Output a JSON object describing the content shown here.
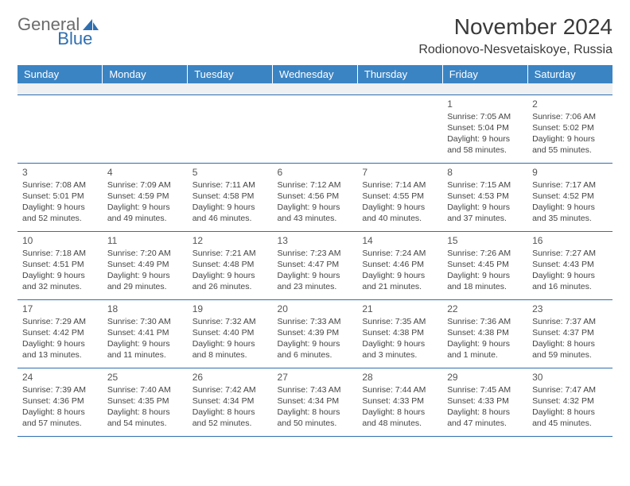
{
  "brand": {
    "part1": "General",
    "part2": "Blue"
  },
  "title": "November 2024",
  "location": "Rodionovo-Nesvetaiskoye, Russia",
  "columns": [
    "Sunday",
    "Monday",
    "Tuesday",
    "Wednesday",
    "Thursday",
    "Friday",
    "Saturday"
  ],
  "colors": {
    "header_bg": "#3b84c4",
    "header_fg": "#ffffff",
    "row_border": "#2f6fb0",
    "blank_row_bg": "#eef0f2",
    "text": "#3a3a3a",
    "logo_gray": "#6b6b6b",
    "logo_blue": "#2f6fb0"
  },
  "weeks": [
    [
      null,
      null,
      null,
      null,
      null,
      {
        "d": "1",
        "sr": "Sunrise: 7:05 AM",
        "ss": "Sunset: 5:04 PM",
        "dl": "Daylight: 9 hours and 58 minutes."
      },
      {
        "d": "2",
        "sr": "Sunrise: 7:06 AM",
        "ss": "Sunset: 5:02 PM",
        "dl": "Daylight: 9 hours and 55 minutes."
      }
    ],
    [
      {
        "d": "3",
        "sr": "Sunrise: 7:08 AM",
        "ss": "Sunset: 5:01 PM",
        "dl": "Daylight: 9 hours and 52 minutes."
      },
      {
        "d": "4",
        "sr": "Sunrise: 7:09 AM",
        "ss": "Sunset: 4:59 PM",
        "dl": "Daylight: 9 hours and 49 minutes."
      },
      {
        "d": "5",
        "sr": "Sunrise: 7:11 AM",
        "ss": "Sunset: 4:58 PM",
        "dl": "Daylight: 9 hours and 46 minutes."
      },
      {
        "d": "6",
        "sr": "Sunrise: 7:12 AM",
        "ss": "Sunset: 4:56 PM",
        "dl": "Daylight: 9 hours and 43 minutes."
      },
      {
        "d": "7",
        "sr": "Sunrise: 7:14 AM",
        "ss": "Sunset: 4:55 PM",
        "dl": "Daylight: 9 hours and 40 minutes."
      },
      {
        "d": "8",
        "sr": "Sunrise: 7:15 AM",
        "ss": "Sunset: 4:53 PM",
        "dl": "Daylight: 9 hours and 37 minutes."
      },
      {
        "d": "9",
        "sr": "Sunrise: 7:17 AM",
        "ss": "Sunset: 4:52 PM",
        "dl": "Daylight: 9 hours and 35 minutes."
      }
    ],
    [
      {
        "d": "10",
        "sr": "Sunrise: 7:18 AM",
        "ss": "Sunset: 4:51 PM",
        "dl": "Daylight: 9 hours and 32 minutes."
      },
      {
        "d": "11",
        "sr": "Sunrise: 7:20 AM",
        "ss": "Sunset: 4:49 PM",
        "dl": "Daylight: 9 hours and 29 minutes."
      },
      {
        "d": "12",
        "sr": "Sunrise: 7:21 AM",
        "ss": "Sunset: 4:48 PM",
        "dl": "Daylight: 9 hours and 26 minutes."
      },
      {
        "d": "13",
        "sr": "Sunrise: 7:23 AM",
        "ss": "Sunset: 4:47 PM",
        "dl": "Daylight: 9 hours and 23 minutes."
      },
      {
        "d": "14",
        "sr": "Sunrise: 7:24 AM",
        "ss": "Sunset: 4:46 PM",
        "dl": "Daylight: 9 hours and 21 minutes."
      },
      {
        "d": "15",
        "sr": "Sunrise: 7:26 AM",
        "ss": "Sunset: 4:45 PM",
        "dl": "Daylight: 9 hours and 18 minutes."
      },
      {
        "d": "16",
        "sr": "Sunrise: 7:27 AM",
        "ss": "Sunset: 4:43 PM",
        "dl": "Daylight: 9 hours and 16 minutes."
      }
    ],
    [
      {
        "d": "17",
        "sr": "Sunrise: 7:29 AM",
        "ss": "Sunset: 4:42 PM",
        "dl": "Daylight: 9 hours and 13 minutes."
      },
      {
        "d": "18",
        "sr": "Sunrise: 7:30 AM",
        "ss": "Sunset: 4:41 PM",
        "dl": "Daylight: 9 hours and 11 minutes."
      },
      {
        "d": "19",
        "sr": "Sunrise: 7:32 AM",
        "ss": "Sunset: 4:40 PM",
        "dl": "Daylight: 9 hours and 8 minutes."
      },
      {
        "d": "20",
        "sr": "Sunrise: 7:33 AM",
        "ss": "Sunset: 4:39 PM",
        "dl": "Daylight: 9 hours and 6 minutes."
      },
      {
        "d": "21",
        "sr": "Sunrise: 7:35 AM",
        "ss": "Sunset: 4:38 PM",
        "dl": "Daylight: 9 hours and 3 minutes."
      },
      {
        "d": "22",
        "sr": "Sunrise: 7:36 AM",
        "ss": "Sunset: 4:38 PM",
        "dl": "Daylight: 9 hours and 1 minute."
      },
      {
        "d": "23",
        "sr": "Sunrise: 7:37 AM",
        "ss": "Sunset: 4:37 PM",
        "dl": "Daylight: 8 hours and 59 minutes."
      }
    ],
    [
      {
        "d": "24",
        "sr": "Sunrise: 7:39 AM",
        "ss": "Sunset: 4:36 PM",
        "dl": "Daylight: 8 hours and 57 minutes."
      },
      {
        "d": "25",
        "sr": "Sunrise: 7:40 AM",
        "ss": "Sunset: 4:35 PM",
        "dl": "Daylight: 8 hours and 54 minutes."
      },
      {
        "d": "26",
        "sr": "Sunrise: 7:42 AM",
        "ss": "Sunset: 4:34 PM",
        "dl": "Daylight: 8 hours and 52 minutes."
      },
      {
        "d": "27",
        "sr": "Sunrise: 7:43 AM",
        "ss": "Sunset: 4:34 PM",
        "dl": "Daylight: 8 hours and 50 minutes."
      },
      {
        "d": "28",
        "sr": "Sunrise: 7:44 AM",
        "ss": "Sunset: 4:33 PM",
        "dl": "Daylight: 8 hours and 48 minutes."
      },
      {
        "d": "29",
        "sr": "Sunrise: 7:45 AM",
        "ss": "Sunset: 4:33 PM",
        "dl": "Daylight: 8 hours and 47 minutes."
      },
      {
        "d": "30",
        "sr": "Sunrise: 7:47 AM",
        "ss": "Sunset: 4:32 PM",
        "dl": "Daylight: 8 hours and 45 minutes."
      }
    ]
  ]
}
